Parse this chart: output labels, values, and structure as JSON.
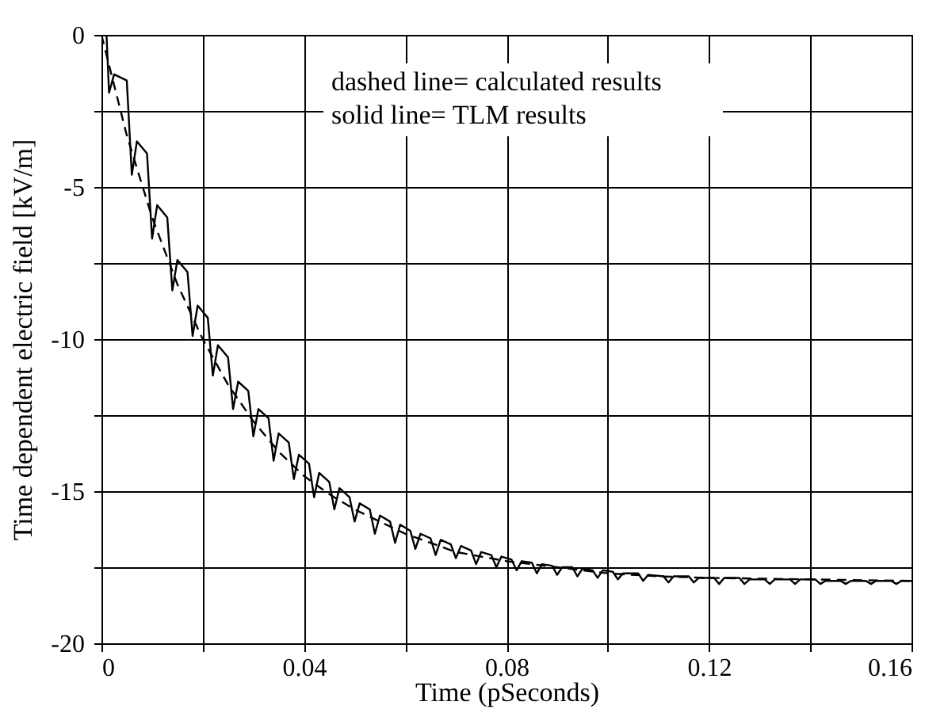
{
  "chart_data": {
    "type": "line",
    "xlabel": "Time (pSeconds)",
    "ylabel": "Time dependent electric field [kV/m]",
    "annotations": [
      "dashed line= calculated results",
      "solid line= TLM results"
    ],
    "xlim": [
      0,
      0.16
    ],
    "ylim": [
      -20,
      0
    ],
    "xticks": [
      0,
      {
        "value": 0.02,
        "label": null
      },
      0.04,
      {
        "value": 0.06,
        "label": null
      },
      0.08,
      {
        "value": 0.1,
        "label": null
      },
      0.12,
      {
        "value": 0.14,
        "label": null
      },
      0.16
    ],
    "yticks": [
      -20,
      {
        "value": -17.5,
        "label": null
      },
      -15,
      {
        "value": -12.5,
        "label": null
      },
      -10,
      {
        "value": -7.5,
        "label": null
      },
      -5,
      {
        "value": -2.5,
        "label": null
      },
      0
    ],
    "grid": true,
    "series": [
      {
        "color": "#000000",
        "line_style": "dashed",
        "x": [
          0,
          0.005,
          0.01,
          0.015,
          0.02,
          0.025,
          0.03,
          0.035,
          0.04,
          0.045,
          0.05,
          0.06,
          0.07,
          0.08,
          0.09,
          0.1,
          0.11,
          0.12,
          0.14,
          0.16
        ],
        "values": [
          0,
          -3.3,
          -6.0,
          -8.2,
          -10.0,
          -11.5,
          -12.7,
          -13.7,
          -14.5,
          -15.1,
          -15.6,
          -16.4,
          -17.0,
          -17.3,
          -17.5,
          -17.7,
          -17.8,
          -17.85,
          -17.9,
          -17.95
        ]
      },
      {
        "color": "#000000",
        "line_style": "solid",
        "x": [
          0,
          0.001,
          0.0015,
          0.0025,
          0.005,
          0.006,
          0.007,
          0.009,
          0.01,
          0.011,
          0.013,
          0.014,
          0.015,
          0.017,
          0.018,
          0.019,
          0.021,
          0.022,
          0.023,
          0.025,
          0.026,
          0.027,
          0.029,
          0.03,
          0.031,
          0.033,
          0.034,
          0.035,
          0.037,
          0.038,
          0.039,
          0.041,
          0.042,
          0.043,
          0.045,
          0.046,
          0.047,
          0.049,
          0.05,
          0.051,
          0.053,
          0.054,
          0.055,
          0.057,
          0.058,
          0.059,
          0.061,
          0.062,
          0.063,
          0.065,
          0.066,
          0.067,
          0.069,
          0.07,
          0.071,
          0.073,
          0.074,
          0.075,
          0.077,
          0.078,
          0.079,
          0.081,
          0.082,
          0.083,
          0.085,
          0.086,
          0.087,
          0.089,
          0.09,
          0.091,
          0.093,
          0.094,
          0.095,
          0.097,
          0.098,
          0.099,
          0.101,
          0.102,
          0.103,
          0.106,
          0.107,
          0.108,
          0.111,
          0.112,
          0.113,
          0.116,
          0.117,
          0.118,
          0.121,
          0.122,
          0.123,
          0.126,
          0.127,
          0.128,
          0.131,
          0.132,
          0.133,
          0.136,
          0.137,
          0.138,
          0.141,
          0.142,
          0.143,
          0.146,
          0.147,
          0.148,
          0.151,
          0.152,
          0.153,
          0.156,
          0.157,
          0.158,
          0.16
        ],
        "values": [
          0,
          0,
          -1.9,
          -1.3,
          -1.5,
          -4.6,
          -3.5,
          -3.9,
          -6.7,
          -5.6,
          -6.0,
          -8.4,
          -7.4,
          -7.8,
          -9.9,
          -8.9,
          -9.3,
          -11.2,
          -10.2,
          -10.6,
          -12.3,
          -11.4,
          -11.7,
          -13.2,
          -12.3,
          -12.6,
          -14.0,
          -13.1,
          -13.4,
          -14.6,
          -13.8,
          -14.1,
          -15.2,
          -14.4,
          -14.7,
          -15.6,
          -14.9,
          -15.2,
          -16.0,
          -15.4,
          -15.6,
          -16.4,
          -15.8,
          -16.0,
          -16.7,
          -16.1,
          -16.3,
          -16.9,
          -16.4,
          -16.55,
          -17.1,
          -16.6,
          -16.75,
          -17.2,
          -16.8,
          -16.95,
          -17.4,
          -17.0,
          -17.1,
          -17.5,
          -17.15,
          -17.25,
          -17.6,
          -17.3,
          -17.35,
          -17.7,
          -17.4,
          -17.45,
          -17.75,
          -17.5,
          -17.5,
          -17.8,
          -17.55,
          -17.6,
          -17.85,
          -17.6,
          -17.65,
          -17.9,
          -17.7,
          -17.7,
          -17.95,
          -17.75,
          -17.8,
          -18.0,
          -17.8,
          -17.8,
          -18.0,
          -17.85,
          -17.85,
          -18.05,
          -17.85,
          -17.85,
          -18.05,
          -17.9,
          -17.9,
          -18.05,
          -17.9,
          -17.9,
          -18.05,
          -17.9,
          -17.9,
          -18.05,
          -17.95,
          -17.95,
          -18.05,
          -17.95,
          -17.95,
          -18.05,
          -17.95,
          -17.95,
          -18.05,
          -17.95,
          -17.95
        ]
      }
    ]
  }
}
